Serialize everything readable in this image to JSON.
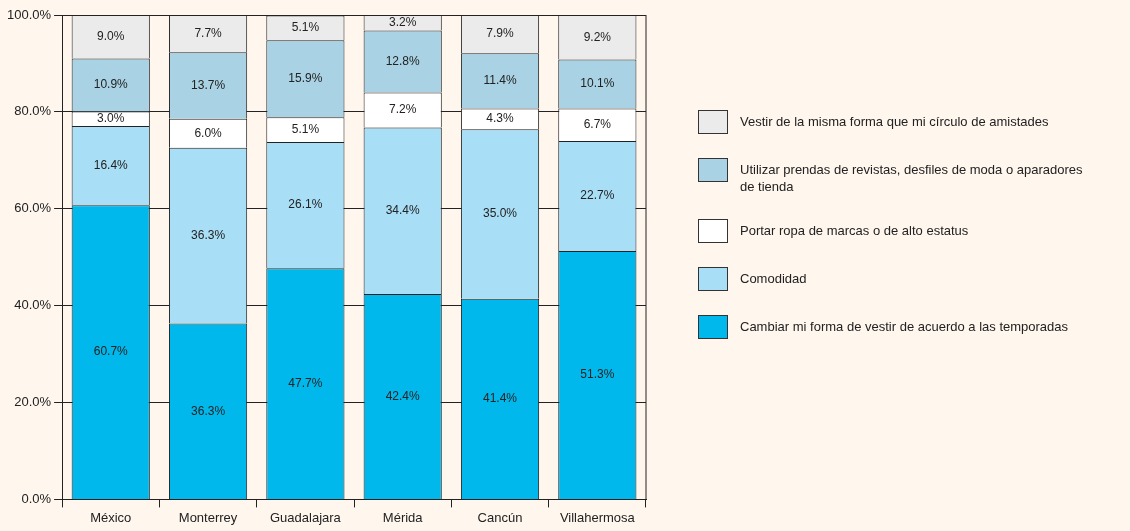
{
  "chart_data": {
    "type": "bar",
    "stacked": true,
    "categories": [
      "México",
      "Monterrey",
      "Guadalajara",
      "Mérida",
      "Cancún",
      "Villahermosa"
    ],
    "ylim": [
      0,
      100
    ],
    "yticks": [
      {
        "value": 0,
        "label": "0.0%"
      },
      {
        "value": 20,
        "label": "20.0%"
      },
      {
        "value": 40,
        "label": "40.0%"
      },
      {
        "value": 60,
        "label": "60.0%"
      },
      {
        "value": 80,
        "label": "80.0%"
      },
      {
        "value": 100,
        "label": "100.0%"
      }
    ],
    "grid": "y",
    "legend": "right",
    "series": [
      {
        "name": "Cambiar mi forma de vestir de acuerdo a las temporadas",
        "color": "#00b8ec",
        "values": [
          60.7,
          36.3,
          47.7,
          42.4,
          41.4,
          51.3
        ],
        "value_labels": [
          "60.7%",
          "36.3%",
          "47.7%",
          "42.4%",
          "41.4%",
          "51.3%"
        ]
      },
      {
        "name": "Comodidad",
        "color": "#a8def6",
        "values": [
          16.4,
          36.3,
          26.1,
          34.4,
          35.0,
          22.7
        ],
        "value_labels": [
          "16.4%",
          "36.3%",
          "26.1%",
          "34.4%",
          "35.0%",
          "22.7%"
        ]
      },
      {
        "name": "Portar ropa de marcas o de alto estatus",
        "color": "#ffffff",
        "values": [
          3.0,
          6.0,
          5.1,
          7.2,
          4.3,
          6.7
        ],
        "value_labels": [
          "3.0%",
          "6.0%",
          "5.1%",
          "7.2%",
          "4.3%",
          "6.7%"
        ]
      },
      {
        "name": "Utilizar prendas de revistas, desfiles de moda o aparadores de tienda",
        "color": "#a9d3e4",
        "values": [
          10.9,
          13.7,
          15.9,
          12.8,
          11.4,
          10.1
        ],
        "value_labels": [
          "10.9%",
          "13.7%",
          "15.9%",
          "12.8%",
          "11.4%",
          "10.1%"
        ]
      },
      {
        "name": "Vestir de la misma forma que mi círculo de amistades",
        "color": "#ebebeb",
        "values": [
          9.0,
          7.7,
          5.1,
          3.2,
          7.9,
          9.2
        ],
        "value_labels": [
          "9.0%",
          "7.7%",
          "5.1%",
          "3.2%",
          "7.9%",
          "9.2%"
        ]
      }
    ]
  }
}
